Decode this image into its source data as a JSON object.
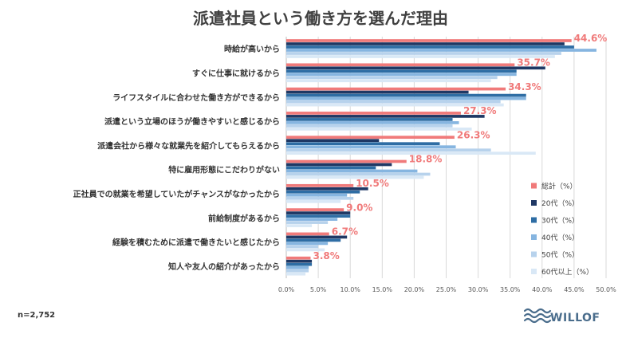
{
  "chart_data": {
    "type": "bar",
    "orientation": "horizontal",
    "title": "派遣社員という働き方を選んだ理由",
    "categories": [
      "時給が高いから",
      "すぐに仕事に就けるから",
      "ライフスタイルに合わせた働き方ができるから",
      "派遣という立場のほうが働きやすいと感じるから",
      "派遣会社から様々な就業先を紹介してもらえるから",
      "特に雇用形態にこだわりがない",
      "正社員での就業を希望していたがチャンスがなかったから",
      "前給制度があるから",
      "経験を積むために派遣で働きたいと感じたから",
      "知人や友人の紹介があったから"
    ],
    "series": [
      {
        "name": "総計（%）",
        "color": "#f07a7a",
        "values": [
          44.6,
          35.7,
          34.3,
          27.3,
          26.3,
          18.8,
          10.5,
          9.0,
          6.7,
          3.8
        ]
      },
      {
        "name": "20代（%）",
        "color": "#1f3864",
        "values": [
          43.5,
          40.5,
          28.5,
          31.0,
          14.5,
          16.5,
          12.8,
          10.0,
          9.5,
          4.0
        ]
      },
      {
        "name": "30代（%）",
        "color": "#2e6da4",
        "values": [
          45.0,
          36.0,
          37.5,
          26.0,
          24.0,
          14.0,
          11.5,
          10.0,
          8.5,
          4.0
        ]
      },
      {
        "name": "40代（%）",
        "color": "#86b5e0",
        "values": [
          48.5,
          36.0,
          37.5,
          27.0,
          26.5,
          20.5,
          9.5,
          8.0,
          6.5,
          3.5
        ]
      },
      {
        "name": "50代（%）",
        "color": "#b7d2ec",
        "values": [
          43.0,
          33.0,
          33.5,
          26.0,
          32.0,
          22.5,
          10.5,
          6.5,
          5.0,
          3.5
        ]
      },
      {
        "name": "60代以上（%）",
        "color": "#d9e8f6",
        "values": [
          42.0,
          32.0,
          34.0,
          29.0,
          39.0,
          21.5,
          8.5,
          4.0,
          6.0,
          3.0
        ]
      }
    ],
    "data_labels": [
      "44.6%",
      "35.7%",
      "34.3%",
      "27.3%",
      "26.3%",
      "18.8%",
      "10.5%",
      "9.0%",
      "6.7%",
      "3.8%"
    ],
    "x_ticks": [
      "0.0%",
      "5.0%",
      "10.0%",
      "15.0%",
      "20.0%",
      "25.0%",
      "30.0%",
      "35.0%",
      "40.0%",
      "45.0%",
      "50.0%"
    ],
    "xlim": [
      0,
      50
    ],
    "grid": true,
    "legend_position": "right"
  },
  "footnote": "n=2,752",
  "logo": {
    "text": "WILLOF",
    "color": "#4a6d8c"
  }
}
